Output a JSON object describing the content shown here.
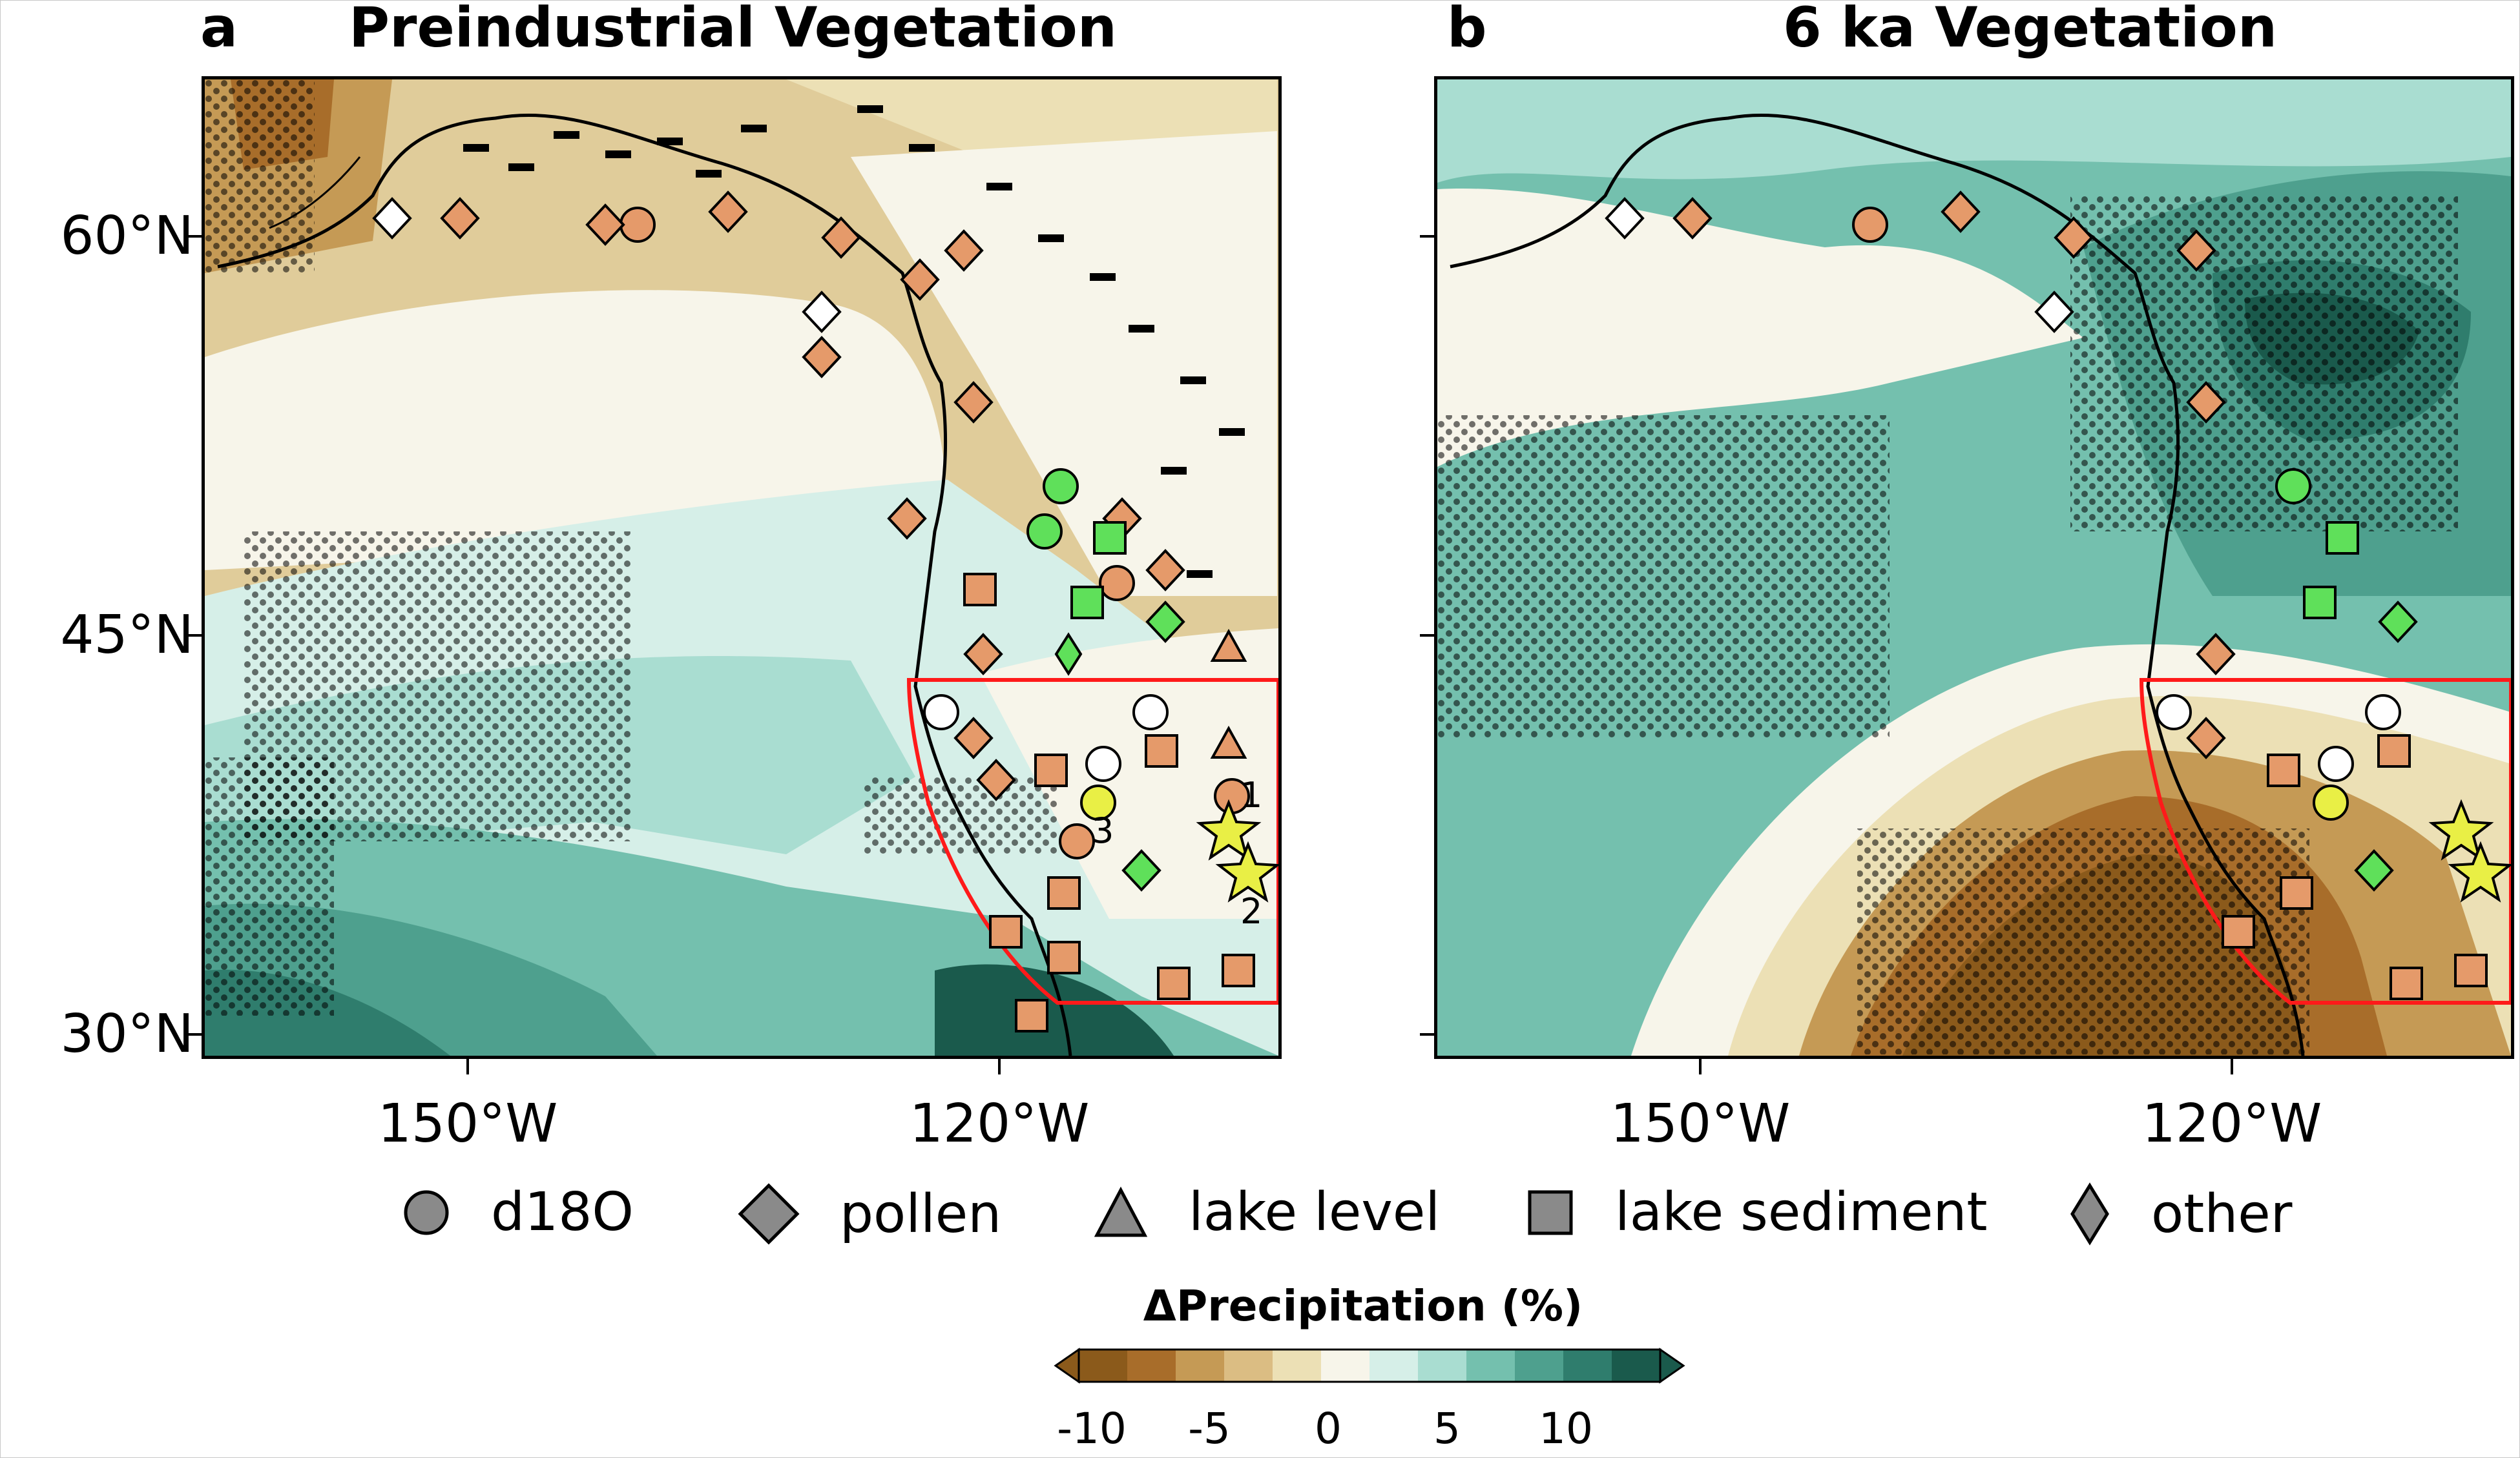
{
  "panels": [
    {
      "letter": "a",
      "title": "Preindustrial Vegetation"
    },
    {
      "letter": "b",
      "title": "6 ka Vegetation"
    }
  ],
  "axes": {
    "lat_labels": [
      "60°N",
      "45°N",
      "30°N"
    ],
    "lon_labels": [
      "150°W",
      "120°W"
    ]
  },
  "site_numbers": [
    "1",
    "2",
    "3"
  ],
  "legend": {
    "items": [
      {
        "label": "d18O",
        "marker": "circle"
      },
      {
        "label": "pollen",
        "marker": "diamond"
      },
      {
        "label": "lake level",
        "marker": "triangle"
      },
      {
        "label": "lake sediment",
        "marker": "square"
      },
      {
        "label": "other",
        "marker": "thin-diamond"
      }
    ]
  },
  "colorbar": {
    "title": "ΔPrecipitation (%)",
    "ticks": [
      "-10",
      "-5",
      "0",
      "5",
      "10"
    ],
    "colors": [
      "#8b5a1b",
      "#a86d2a",
      "#c59a55",
      "#dbbd83",
      "#ece0b5",
      "#f7f5ea",
      "#d6efe8",
      "#a9ddd1",
      "#74c0ae",
      "#4ea08e",
      "#2f7d6d",
      "#1a5a4c"
    ]
  },
  "colors": {
    "pollen_dry": "#e59a6a",
    "wet_marker": "#5fe05a",
    "no_change": "#ffffff",
    "star": "#e9ef45",
    "region_box": "#ff1a1a"
  }
}
